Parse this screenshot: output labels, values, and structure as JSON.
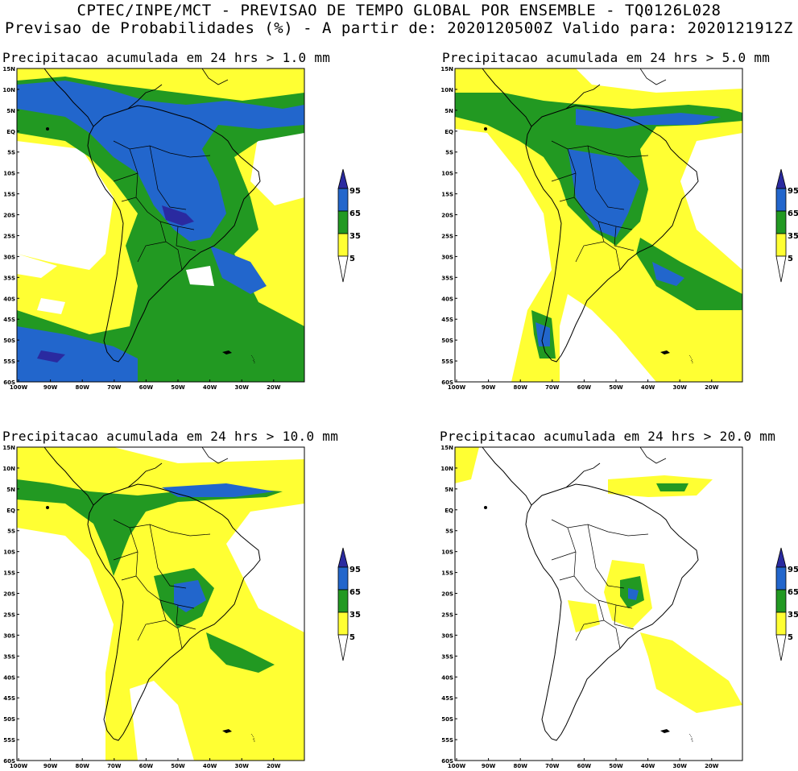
{
  "header": {
    "line1": "CPTEC/INPE/MCT - PREVISAO DE TEMPO GLOBAL POR ENSEMBLE - TQ0126L028",
    "line2": "Previsao de Probabilidades (%) -  A partir de: 2020120500Z  Valido para: 2020121912Z"
  },
  "panels": [
    {
      "title": "Precipitacao acumulada em 24 hrs > 1.0 mm"
    },
    {
      "title": "Precipitacao acumulada em 24 hrs > 5.0 mm"
    },
    {
      "title": "Precipitacao acumulada em 24 hrs > 10.0 mm"
    },
    {
      "title": "Precipitacao acumulada em 24 hrs > 20.0 mm"
    }
  ],
  "lat_labels": [
    "15N",
    "10N",
    "5N",
    "EQ",
    "5S",
    "10S",
    "15S",
    "20S",
    "25S",
    "30S",
    "35S",
    "40S",
    "45S",
    "50S",
    "55S",
    "60S"
  ],
  "lon_labels": [
    "100W",
    "90W",
    "80W",
    "70W",
    "60W",
    "50W",
    "40W",
    "30W",
    "20W"
  ],
  "colorbar": {
    "levels": [
      "95",
      "65",
      "35",
      "5"
    ],
    "colors": {
      "white": "#ffffff",
      "yellow": "#ffff33",
      "green": "#229922",
      "blue": "#2266cc",
      "darkblue": "#2a2aa0"
    }
  }
}
